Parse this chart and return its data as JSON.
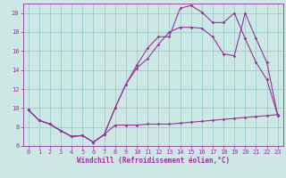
{
  "xlabel": "Windchill (Refroidissement éolien,°C)",
  "bg_color": "#cce8e4",
  "grid_color": "#99cccc",
  "line_color": "#993399",
  "xlim": [
    -0.5,
    23.5
  ],
  "ylim": [
    6,
    21
  ],
  "xticks": [
    0,
    1,
    2,
    3,
    4,
    5,
    6,
    7,
    8,
    9,
    10,
    11,
    12,
    13,
    14,
    15,
    16,
    17,
    18,
    19,
    20,
    21,
    22,
    23
  ],
  "yticks": [
    6,
    8,
    10,
    12,
    14,
    16,
    18,
    20
  ],
  "series1_x": [
    0,
    1,
    2,
    3,
    4,
    5,
    6,
    7,
    8,
    9,
    10,
    11,
    12,
    13,
    14,
    15,
    16,
    17,
    18,
    19,
    20,
    21,
    22,
    23
  ],
  "series1_y": [
    9.8,
    8.7,
    8.3,
    7.6,
    7.0,
    7.1,
    6.4,
    7.2,
    8.2,
    8.2,
    8.2,
    8.3,
    8.3,
    8.3,
    8.4,
    8.5,
    8.6,
    8.7,
    8.8,
    8.9,
    9.0,
    9.1,
    9.2,
    9.3
  ],
  "series2_x": [
    0,
    1,
    2,
    3,
    4,
    5,
    6,
    7,
    8,
    9,
    10,
    11,
    12,
    13,
    14,
    15,
    16,
    17,
    18,
    19,
    20,
    21,
    22,
    23
  ],
  "series2_y": [
    9.8,
    8.7,
    8.3,
    7.6,
    7.0,
    7.1,
    6.4,
    7.2,
    10.0,
    12.5,
    14.5,
    16.3,
    17.5,
    17.5,
    20.5,
    20.8,
    20.1,
    19.0,
    19.0,
    20.0,
    17.3,
    14.8,
    13.0,
    9.2
  ],
  "series3_x": [
    0,
    1,
    2,
    3,
    4,
    5,
    6,
    7,
    8,
    9,
    10,
    11,
    12,
    13,
    14,
    15,
    16,
    17,
    18,
    19,
    20,
    21,
    22,
    23
  ],
  "series3_y": [
    9.8,
    8.7,
    8.3,
    7.6,
    7.0,
    7.1,
    6.4,
    7.2,
    10.0,
    12.5,
    14.2,
    15.2,
    16.7,
    18.0,
    18.5,
    18.5,
    18.4,
    17.5,
    15.7,
    15.5,
    20.0,
    17.3,
    14.8,
    9.2
  ],
  "tick_fontsize": 5.0,
  "label_fontsize": 5.5,
  "marker_size": 1.8,
  "line_width": 0.8
}
